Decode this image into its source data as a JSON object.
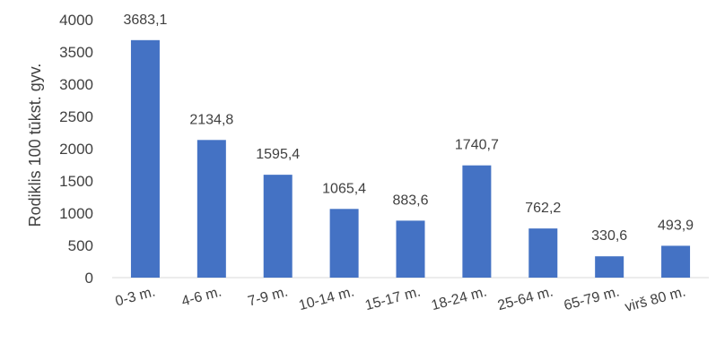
{
  "chart_data": {
    "type": "bar",
    "title": "",
    "xlabel": "",
    "ylabel": "Rodiklis 100 tūkst. gyv.",
    "ylim": [
      0,
      4000
    ],
    "yticks": [
      "0",
      "500",
      "1000",
      "1500",
      "2000",
      "2500",
      "3000",
      "3500",
      "4000"
    ],
    "grid": false,
    "legend": "none",
    "bar_color": "#4472C4",
    "categories": [
      "0-3 m.",
      "4-6 m.",
      "7-9 m.",
      "10-14 m.",
      "15-17 m.",
      "18-24 m.",
      "25-64 m.",
      "65-79 m.",
      "virš 80 m."
    ],
    "values": [
      3683.1,
      2134.8,
      1595.4,
      1065.4,
      883.6,
      1740.7,
      762.2,
      330.6,
      493.9
    ],
    "data_labels": [
      "3683,1",
      "2134,8",
      "1595,4",
      "1065,4",
      "883,6",
      "1740,7",
      "762,2",
      "330,6",
      "493,9"
    ]
  }
}
